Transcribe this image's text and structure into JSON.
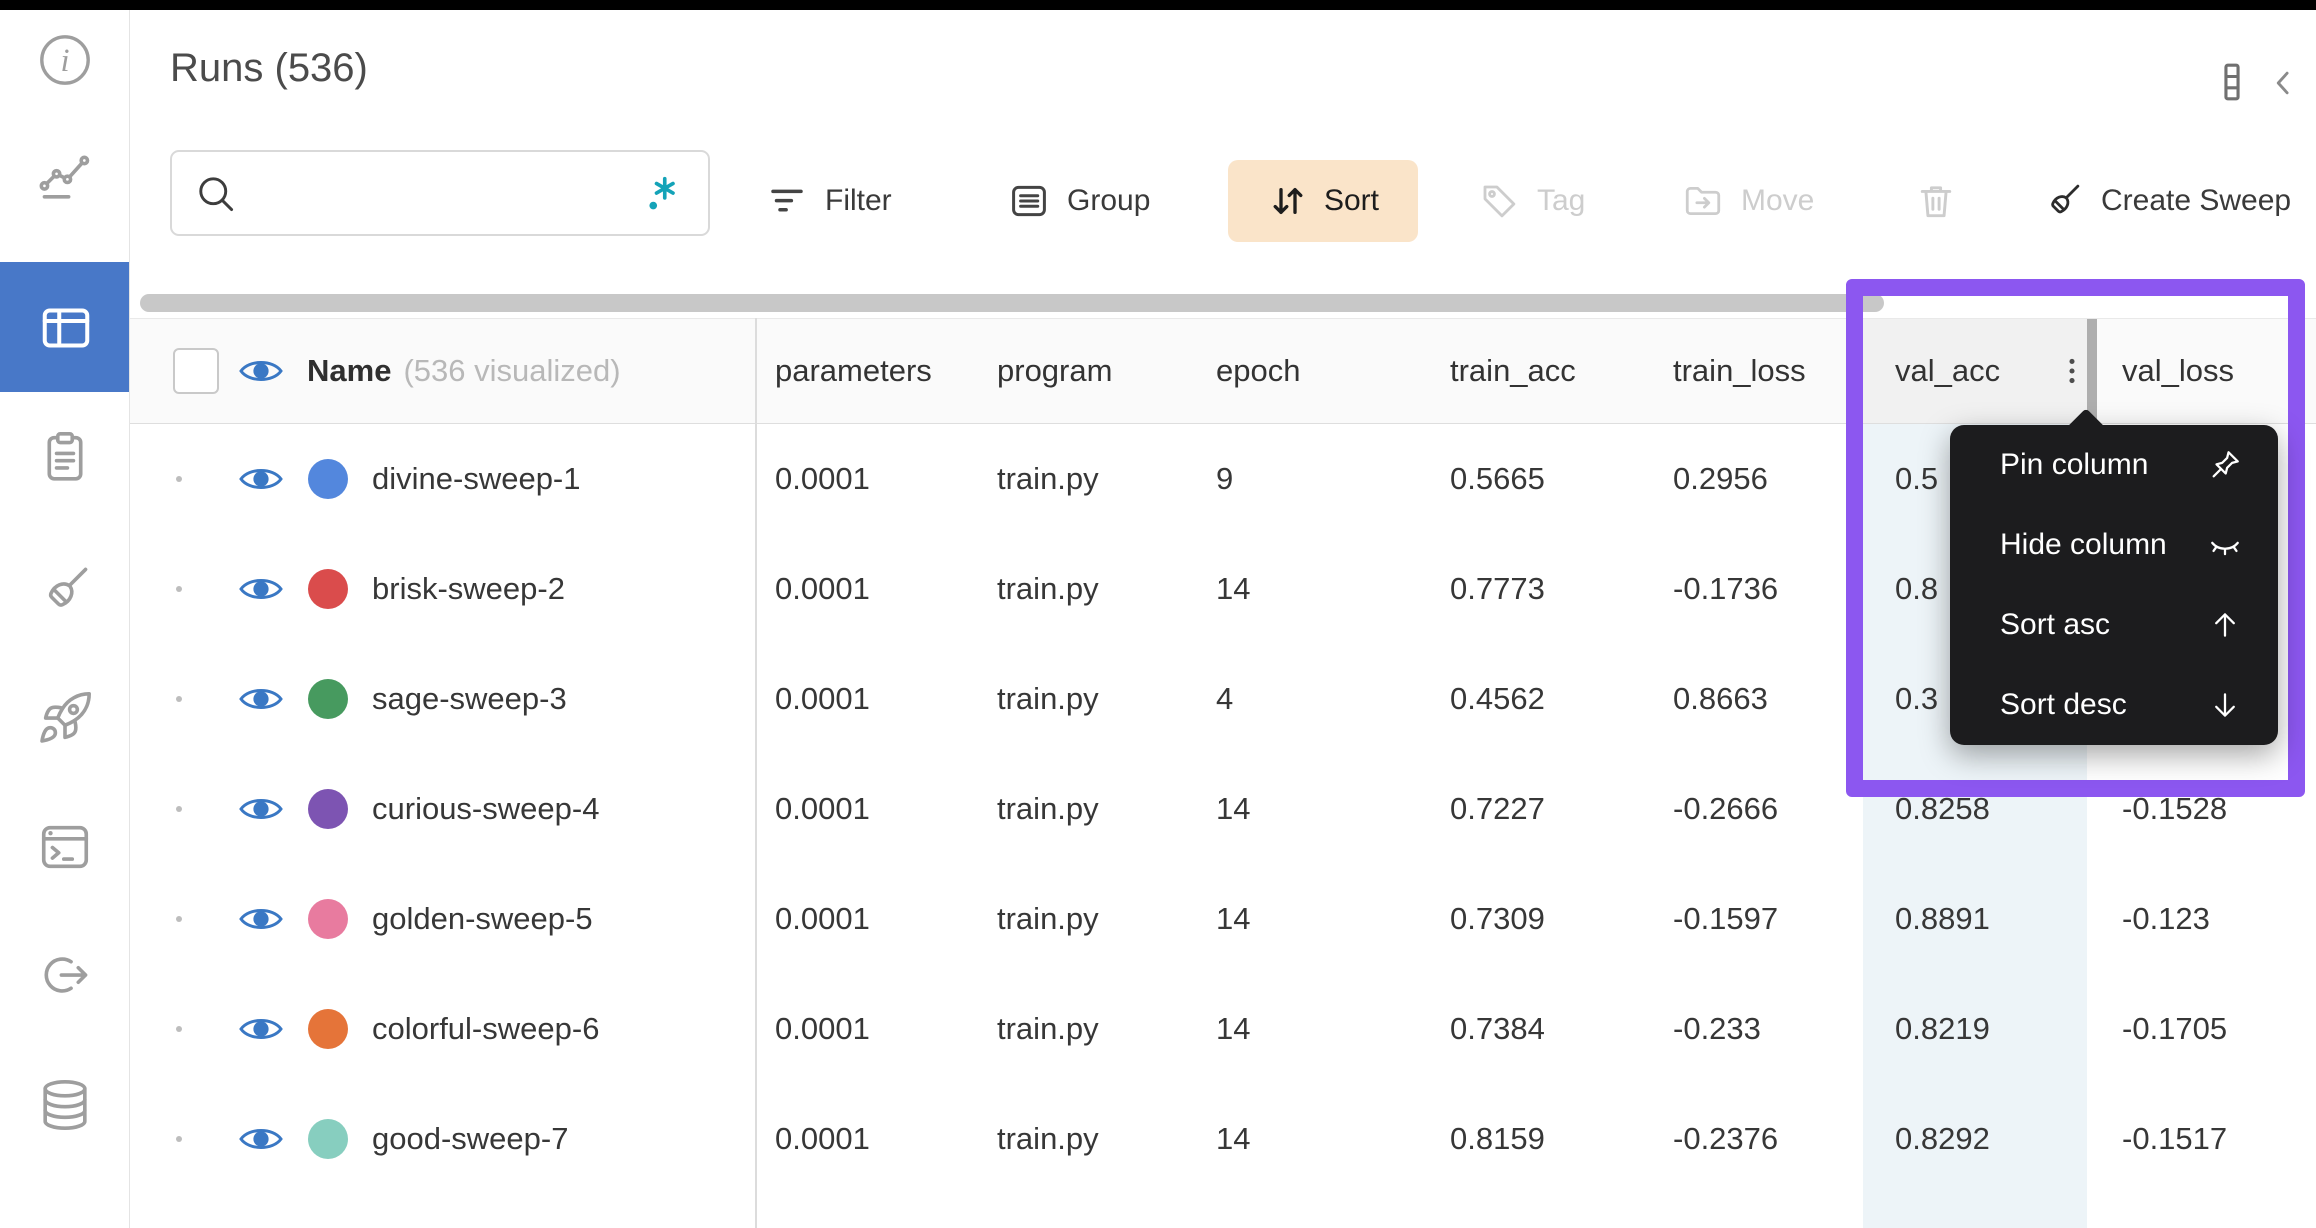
{
  "header": {
    "title": "Runs (536)"
  },
  "sidebar": {
    "items": [
      {
        "icon": "info-icon"
      },
      {
        "icon": "line-chart-icon"
      },
      {
        "icon": "table-icon",
        "selected": true
      },
      {
        "icon": "clipboard-icon"
      },
      {
        "icon": "broom-icon"
      },
      {
        "icon": "rocket-icon"
      },
      {
        "icon": "terminal-icon"
      },
      {
        "icon": "link-out-icon"
      },
      {
        "icon": "database-icon"
      }
    ]
  },
  "toolbar": {
    "search": {
      "value": "",
      "placeholder": ""
    },
    "regex_label": ".*",
    "filter_label": "Filter",
    "group_label": "Group",
    "sort_label": "Sort",
    "tag_label": "Tag",
    "move_label": "Move",
    "create_sweep_label": "Create Sweep",
    "disabled_buttons": [
      "Tag",
      "Move",
      "Delete"
    ]
  },
  "table": {
    "name_header": "Name",
    "name_note": "(536 visualized)",
    "columns": [
      "parameters",
      "program",
      "epoch",
      "train_acc",
      "train_loss",
      "val_acc",
      "val_loss"
    ],
    "rows": [
      {
        "name": "divine-sweep-1",
        "color": "#5387DD",
        "parameters": "0.0001",
        "program": "train.py",
        "epoch": "9",
        "train_acc": "0.5665",
        "train_loss": "0.2956",
        "val_acc": "0.5",
        "val_loss": ""
      },
      {
        "name": "brisk-sweep-2",
        "color": "#DA4C4C",
        "parameters": "0.0001",
        "program": "train.py",
        "epoch": "14",
        "train_acc": "0.7773",
        "train_loss": "-0.1736",
        "val_acc": "0.8",
        "val_loss": ""
      },
      {
        "name": "sage-sweep-3",
        "color": "#479A5F",
        "parameters": "0.0001",
        "program": "train.py",
        "epoch": "4",
        "train_acc": "0.4562",
        "train_loss": "0.8663",
        "val_acc": "0.3",
        "val_loss": ""
      },
      {
        "name": "curious-sweep-4",
        "color": "#7D54B2",
        "parameters": "0.0001",
        "program": "train.py",
        "epoch": "14",
        "train_acc": "0.7227",
        "train_loss": "-0.2666",
        "val_acc": "0.8258",
        "val_loss": "-0.1528"
      },
      {
        "name": "golden-sweep-5",
        "color": "#E87B9F",
        "parameters": "0.0001",
        "program": "train.py",
        "epoch": "14",
        "train_acc": "0.7309",
        "train_loss": "-0.1597",
        "val_acc": "0.8891",
        "val_loss": "-0.123"
      },
      {
        "name": "colorful-sweep-6",
        "color": "#E57439",
        "parameters": "0.0001",
        "program": "train.py",
        "epoch": "14",
        "train_acc": "0.7384",
        "train_loss": "-0.233",
        "val_acc": "0.8219",
        "val_loss": "-0.1705"
      },
      {
        "name": "good-sweep-7",
        "color": "#87CEBF",
        "parameters": "0.0001",
        "program": "train.py",
        "epoch": "14",
        "train_acc": "0.8159",
        "train_loss": "-0.2376",
        "val_acc": "0.8292",
        "val_loss": "-0.1517"
      }
    ]
  },
  "column_menu": {
    "target_column": "val_acc",
    "items": [
      {
        "label": "Pin column",
        "icon": "pin-icon"
      },
      {
        "label": "Hide column",
        "icon": "eye-closed-icon"
      },
      {
        "label": "Sort asc",
        "icon": "arrow-up-icon"
      },
      {
        "label": "Sort desc",
        "icon": "arrow-down-icon"
      }
    ]
  },
  "colors": {
    "sidebar_selected_blue": "#4878C8",
    "eye_blue": "#3A78C4",
    "sort_button_bg": "#FAE4C9",
    "regex_teal": "#14A3B8",
    "highlight_purple": "#8C57F0",
    "menu_bg": "#1C1C1E",
    "val_acc_column_bg": "#EDF4F8"
  }
}
